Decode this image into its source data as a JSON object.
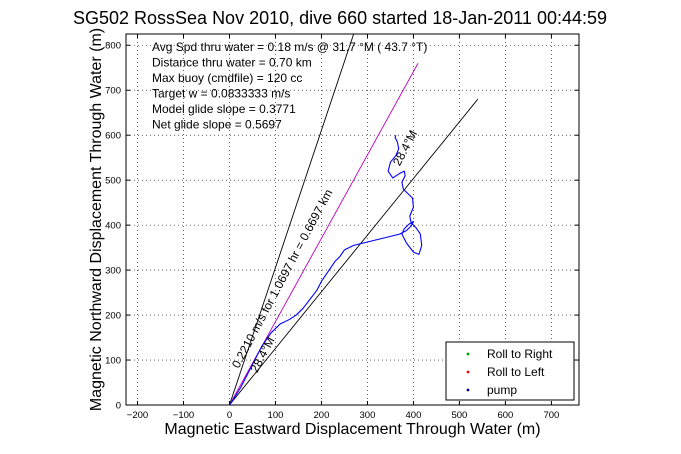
{
  "chart_data": {
    "type": "line",
    "title": "SG502 RossSea Nov 2010, dive 660 started 18-Jan-2011 00:44:59",
    "xlabel": "Magnetic Eastward Displacement Through Water (m)",
    "ylabel": "Magnetic Northward Displacement Through Water (m)",
    "xlim": [
      -225,
      760
    ],
    "ylim": [
      0,
      825
    ],
    "xticks": [
      -200,
      -100,
      0,
      100,
      200,
      300,
      400,
      500,
      600,
      700
    ],
    "yticks": [
      0,
      100,
      200,
      300,
      400,
      500,
      600,
      700,
      800
    ],
    "grid": true,
    "legend_position": "bottom-right",
    "annotations": [
      "Avg Spd thru water =  0.18 m/s @  31.7    °M ( 43.7 °T)",
      "Distance thru water =  0.70 km",
      "Max buoy (cmdfile) = 120 cc",
      "Target w = 0.0833333 m/s",
      "Model glide slope = 0.3771",
      "Net glide slope = 0.5697"
    ],
    "line_labels": [
      {
        "text": "0.2210 m/s for 1.0697 hr = 0.6697 km",
        "x": 20,
        "y": 80
      },
      {
        "text": "28.4°M",
        "x": 370,
        "y": 530
      },
      {
        "text": "28.4°M",
        "x": 60,
        "y": 70
      }
    ],
    "reference_lines": [
      {
        "name": "black-line-steep",
        "color": "#000000",
        "x": [
          0,
          270
        ],
        "y": [
          0,
          830
        ]
      },
      {
        "name": "black-line-shallow",
        "color": "#000000",
        "x": [
          0,
          540
        ],
        "y": [
          0,
          680
        ]
      },
      {
        "name": "magenta-line",
        "color": "#c000c0",
        "x": [
          0,
          410
        ],
        "y": [
          0,
          760
        ]
      }
    ],
    "series": [
      {
        "color": "#0000ff",
        "x": [
          0,
          10,
          25,
          40,
          55,
          70,
          90,
          110,
          130,
          145,
          160,
          175,
          190,
          200,
          210,
          220,
          230,
          240,
          250,
          270,
          290,
          310,
          330,
          350,
          370,
          385,
          395,
          400,
          390,
          380,
          375,
          385,
          400,
          412,
          418,
          415,
          405,
          395,
          392,
          400,
          398,
          388,
          378,
          375,
          382,
          380,
          370,
          355,
          345,
          350,
          362,
          368,
          365,
          360,
          362
        ],
        "y": [
          0,
          15,
          40,
          70,
          100,
          130,
          160,
          180,
          190,
          200,
          215,
          235,
          255,
          275,
          290,
          305,
          320,
          330,
          345,
          355,
          360,
          365,
          370,
          375,
          380,
          388,
          398,
          408,
          402,
          392,
          380,
          360,
          340,
          335,
          355,
          380,
          395,
          405,
          420,
          440,
          460,
          470,
          480,
          495,
          510,
          520,
          515,
          505,
          520,
          540,
          555,
          570,
          585,
          595,
          600
        ]
      }
    ],
    "legend": [
      {
        "label": "Roll to Right",
        "color": "#00a000"
      },
      {
        "label": "Roll to Left",
        "color": "#ff0000"
      },
      {
        "label": "pump",
        "color": "#000080"
      }
    ]
  }
}
